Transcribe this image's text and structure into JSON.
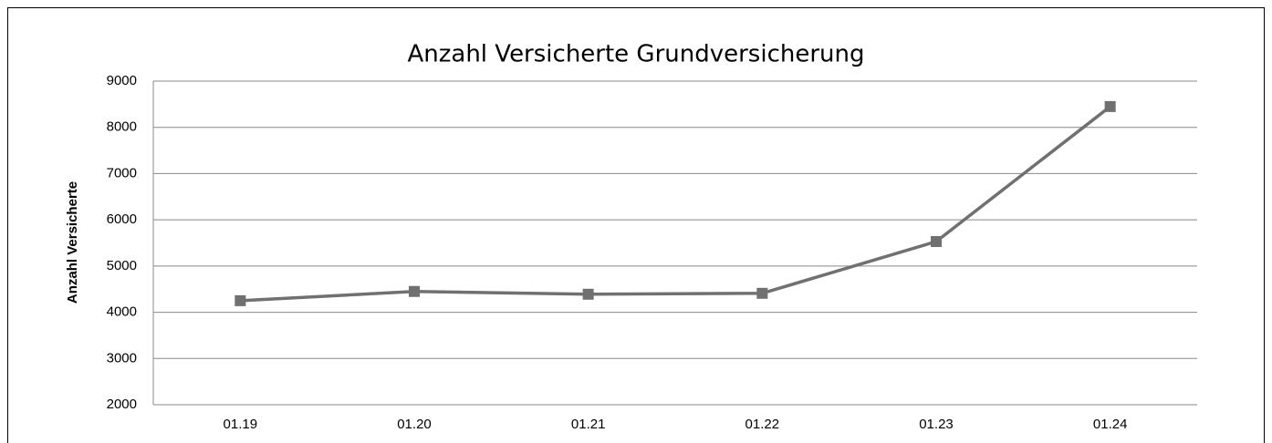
{
  "chart_data": {
    "type": "line",
    "title": "Anzahl Versicherte Grundversicherung",
    "y_label": "Anzahl Versicherte",
    "categories": [
      "01.19",
      "01.20",
      "01.21",
      "01.22",
      "01.23",
      "01.24"
    ],
    "values": [
      4250,
      4450,
      4390,
      4410,
      5530,
      8450
    ],
    "color": "#707070",
    "ylim": [
      2000,
      9000
    ],
    "yticks": [
      2000,
      3000,
      4000,
      5000,
      6000,
      7000,
      8000,
      9000
    ],
    "grid": true
  }
}
